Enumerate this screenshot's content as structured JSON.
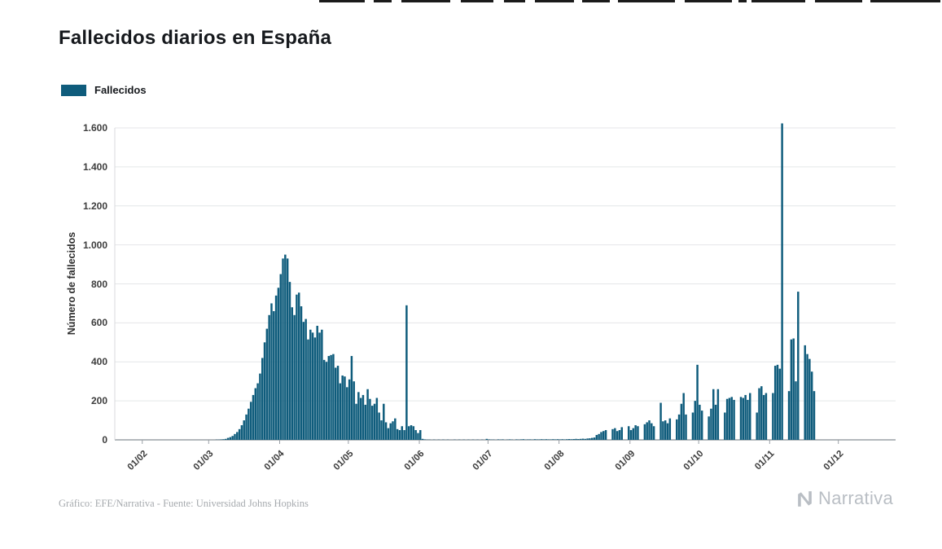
{
  "header": {
    "title": "Fallecidos diarios en España"
  },
  "legend": {
    "label": "Fallecidos"
  },
  "footer": {
    "credit": "Gráfico: EFE/Narrativa - Fuente: Universidad Johns Hopkins",
    "brand": "Narrativa"
  },
  "chart_data": {
    "type": "bar",
    "title": "Fallecidos diarios en España",
    "series_name": "Fallecidos",
    "xlabel": "",
    "ylabel": "Número de fallecidos",
    "x_tick_labels": [
      "01/02",
      "01/03",
      "01/04",
      "01/05",
      "01/06",
      "01/07",
      "01/08",
      "01/09",
      "01/10",
      "01/11",
      "01/12"
    ],
    "y_ticks": [
      0,
      200,
      400,
      600,
      800,
      1000,
      1200,
      1400,
      1600
    ],
    "y_tick_labels": [
      "0",
      "200",
      "400",
      "600",
      "800",
      "1.000",
      "1.200",
      "1.400",
      "1.600"
    ],
    "ylim": [
      0,
      1600
    ],
    "grid": true,
    "legend_position": "top-left",
    "bar_color": "#0f5c7c",
    "x_start_date": "2020-02-01",
    "x_unit": "day",
    "values": [
      0,
      0,
      0,
      0,
      0,
      0,
      0,
      0,
      0,
      0,
      0,
      0,
      0,
      0,
      0,
      0,
      0,
      0,
      0,
      0,
      0,
      0,
      0,
      0,
      0,
      0,
      0,
      0,
      0,
      0,
      0,
      0,
      1,
      1,
      2,
      3,
      5,
      10,
      14,
      20,
      30,
      40,
      55,
      75,
      100,
      130,
      160,
      195,
      230,
      265,
      290,
      340,
      420,
      500,
      570,
      640,
      700,
      660,
      740,
      780,
      850,
      930,
      950,
      930,
      810,
      680,
      640,
      745,
      755,
      685,
      605,
      620,
      515,
      565,
      550,
      525,
      585,
      550,
      565,
      410,
      400,
      430,
      435,
      440,
      370,
      380,
      290,
      330,
      325,
      270,
      310,
      430,
      300,
      185,
      245,
      215,
      230,
      180,
      260,
      210,
      175,
      185,
      215,
      140,
      100,
      185,
      90,
      60,
      85,
      95,
      110,
      55,
      50,
      70,
      50,
      690,
      70,
      75,
      70,
      50,
      35,
      50,
      5,
      2,
      1,
      1,
      0,
      1,
      0,
      1,
      0,
      1,
      0,
      1,
      0,
      0,
      1,
      0,
      1,
      0,
      1,
      0,
      1,
      0,
      1,
      0,
      1,
      0,
      1,
      0,
      5,
      2,
      1,
      1,
      0,
      2,
      1,
      2,
      0,
      1,
      2,
      1,
      0,
      2,
      1,
      2,
      3,
      1,
      2,
      2,
      1,
      3,
      2,
      2,
      3,
      2,
      3,
      2,
      2,
      3,
      2,
      3,
      2,
      3,
      2,
      3,
      4,
      3,
      4,
      5,
      4,
      5,
      6,
      5,
      7,
      8,
      10,
      12,
      25,
      30,
      40,
      45,
      50,
      0,
      0,
      55,
      60,
      45,
      50,
      65,
      0,
      0,
      70,
      50,
      60,
      75,
      70,
      0,
      0,
      80,
      90,
      100,
      85,
      70,
      0,
      0,
      190,
      95,
      100,
      85,
      110,
      0,
      0,
      105,
      130,
      185,
      240,
      130,
      0,
      0,
      140,
      200,
      385,
      180,
      150,
      0,
      0,
      120,
      160,
      260,
      180,
      260,
      0,
      0,
      140,
      210,
      215,
      220,
      205,
      0,
      0,
      220,
      215,
      230,
      205,
      240,
      0,
      0,
      140,
      265,
      275,
      230,
      240,
      0,
      0,
      240,
      380,
      385,
      365,
      1623,
      0,
      0,
      250,
      515,
      520,
      300,
      760,
      0,
      0,
      485,
      440,
      415,
      350,
      250
    ]
  }
}
